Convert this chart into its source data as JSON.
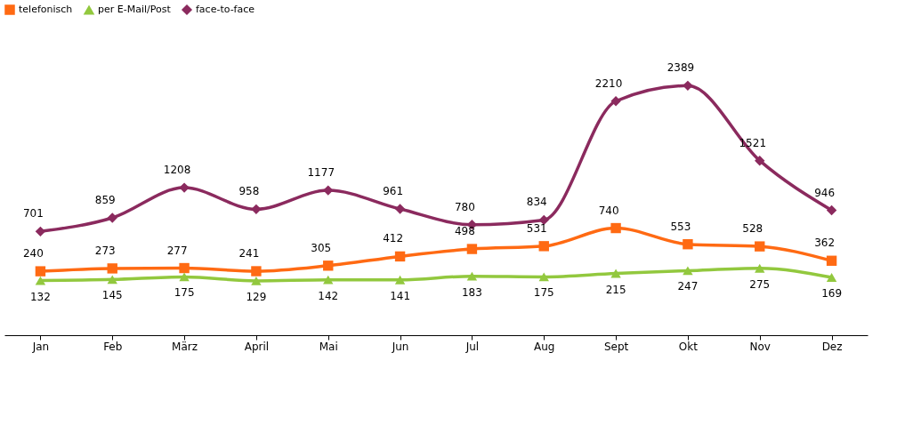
{
  "chart_data": {
    "type": "line",
    "categories": [
      "Jan",
      "Feb",
      "März",
      "April",
      "Mai",
      "Jun",
      "Jul",
      "Aug",
      "Sept",
      "Okt",
      "Nov",
      "Dez"
    ],
    "series": [
      {
        "name": "telefonisch",
        "color": "#ff6a13",
        "marker": "square",
        "values": [
          240,
          273,
          277,
          241,
          305,
          412,
          498,
          531,
          740,
          553,
          528,
          362
        ]
      },
      {
        "name": "per E-Mail/Post",
        "color": "#92c83e",
        "marker": "triangle",
        "values": [
          132,
          145,
          175,
          129,
          142,
          141,
          183,
          175,
          215,
          247,
          275,
          169
        ]
      },
      {
        "name": "face-to-face",
        "color": "#8b2a5e",
        "marker": "diamond",
        "values": [
          701,
          859,
          1208,
          958,
          1177,
          961,
          780,
          834,
          2210,
          2389,
          1521,
          946
        ]
      }
    ],
    "data_labels": true,
    "legend": "top",
    "grid": false,
    "line_style": "solid"
  }
}
